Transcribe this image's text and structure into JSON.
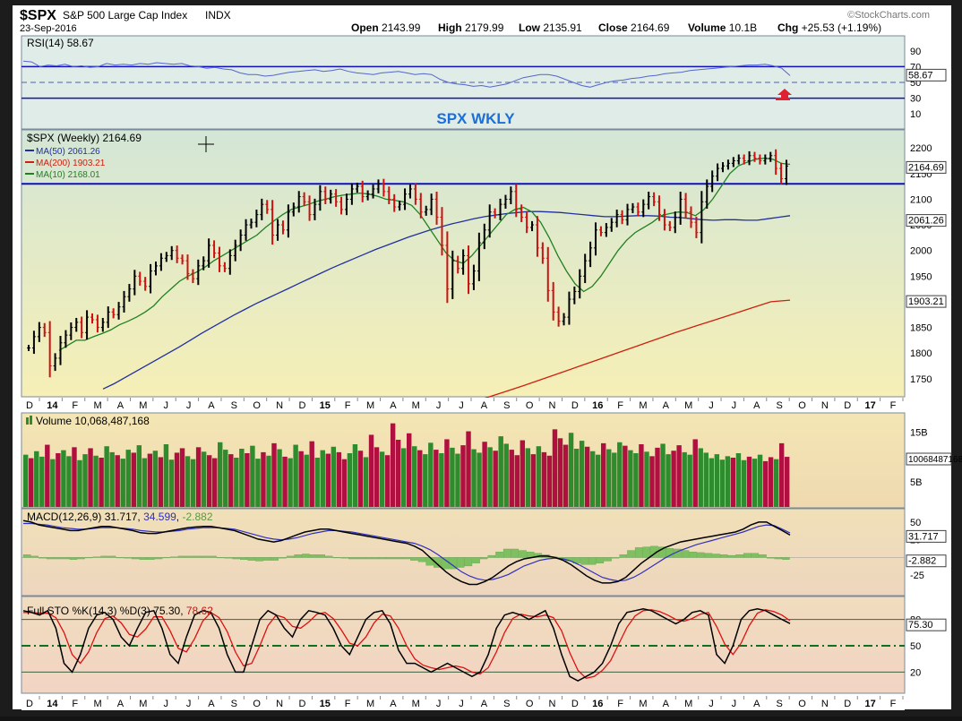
{
  "header": {
    "symbol": "$SPX",
    "name": "S&P 500 Large Cap Index",
    "exchange": "INDX",
    "watermark": "©StockCharts.com",
    "date": "23-Sep-2016",
    "quote": {
      "open_label": "Open",
      "open": "2143.99",
      "high_label": "High",
      "high": "2179.99",
      "low_label": "Low",
      "low": "2135.91",
      "close_label": "Close",
      "close": "2164.69",
      "volume_label": "Volume",
      "volume": "10.1B",
      "chg_label": "Chg",
      "chg": "+25.53 (+1.19%)"
    }
  },
  "colors": {
    "background": "#ffffff",
    "rsi_panel": "#e0ece6",
    "price_panel_top": "#d6e8d6",
    "price_panel_bottom": "#f5eeb8",
    "volume_panel": "#f2e2b6",
    "macd_panel": "#f0dcbc",
    "sto_panel": "#f2d8c0",
    "up_candle": "#000000",
    "down_candle": "#cc1111",
    "ma50": "#2030a0",
    "ma200": "#cc2010",
    "ma10": "#208020",
    "resistance": "#1010c0",
    "annotation": "#1a6fd8",
    "volume_up": "#2e8b2e",
    "volume_down": "#b01040"
  },
  "chart_data": [
    {
      "type": "line",
      "panel": "rsi",
      "legend": "RSI(14)",
      "last_value": "58.67",
      "ylim": [
        0,
        100
      ],
      "yticks": [
        "90",
        "70",
        "50",
        "30",
        "10"
      ],
      "levels": [
        70,
        30
      ],
      "badge": "58.67",
      "values": [
        77,
        76,
        70,
        72,
        71,
        73,
        70,
        71,
        69,
        70,
        74,
        72,
        73,
        72,
        74,
        73,
        75,
        74,
        73,
        74,
        71,
        70,
        68,
        69,
        67,
        66,
        62,
        60,
        60,
        58,
        59,
        61,
        63,
        64,
        65,
        66,
        64,
        65,
        67,
        64,
        62,
        61,
        60,
        62,
        63,
        64,
        62,
        60,
        61,
        60,
        54,
        50,
        48,
        47,
        45,
        46,
        44,
        46,
        48,
        52,
        56,
        58,
        60,
        60,
        58,
        54,
        50,
        46,
        44,
        47,
        50,
        52,
        53,
        55,
        56,
        58,
        59,
        61,
        62,
        63,
        65,
        66,
        67,
        68,
        69,
        70,
        71,
        72,
        72,
        73,
        71,
        68,
        58.67
      ]
    },
    {
      "type": "candlestick",
      "panel": "price",
      "legend": "$SPX (Weekly)",
      "last_value": "2164.69",
      "annotation": "SPX WKLY",
      "ylim": [
        1720,
        2230
      ],
      "yticks": [
        "2200",
        "2150",
        "2100",
        "2050",
        "2000",
        "1950",
        "1900",
        "1850",
        "1800",
        "1750"
      ],
      "resistance": 2130,
      "series": [
        {
          "name": "MA(50)",
          "last": "2061.26"
        },
        {
          "name": "MA(200)",
          "last": "1903.21"
        },
        {
          "name": "MA(10)",
          "last": "2168.01"
        }
      ],
      "badges": [
        "2164.69",
        "2061.26",
        "1903.21"
      ],
      "closes": [
        1810,
        1832,
        1850,
        1840,
        1775,
        1790,
        1820,
        1835,
        1850,
        1860,
        1840,
        1870,
        1865,
        1850,
        1860,
        1880,
        1875,
        1890,
        1910,
        1925,
        1950,
        1940,
        1930,
        1960,
        1970,
        1985,
        1990,
        2000,
        1985,
        1980,
        1955,
        1945,
        1970,
        1980,
        2010,
        1995,
        1970,
        1965,
        1990,
        2010,
        2030,
        2050,
        2055,
        2070,
        2090,
        2080,
        2030,
        2050,
        2040,
        2075,
        2085,
        2105,
        2095,
        2070,
        2090,
        2115,
        2100,
        2110,
        2095,
        2080,
        2100,
        2120,
        2125,
        2105,
        2110,
        2120,
        2130,
        2115,
        2100,
        2085,
        2090,
        2110,
        2120,
        2100,
        2075,
        2080,
        2100,
        2065,
        2010,
        1925,
        1980,
        1965,
        1990,
        1935,
        1960,
        2015,
        2040,
        2075,
        2070,
        2090,
        2100,
        2115,
        2080,
        2065,
        2045,
        2050,
        2005,
        1985,
        1922,
        1880,
        1862,
        1870,
        1905,
        1920,
        1950,
        1980,
        2005,
        2040,
        2035,
        2045,
        2055,
        2070,
        2060,
        2080,
        2085,
        2075,
        2090,
        2105,
        2095,
        2070,
        2050,
        2045,
        2065,
        2100,
        2075,
        2055,
        2035,
        2095,
        2125,
        2145,
        2160,
        2165,
        2170,
        2175,
        2180,
        2175,
        2185,
        2180,
        2175,
        2180,
        2185,
        2160,
        2140,
        2164.69
      ],
      "ma50_values": [
        1730,
        1740,
        1752,
        1764,
        1776,
        1788,
        1800,
        1812,
        1825,
        1838,
        1850,
        1862,
        1874,
        1885,
        1896,
        1906,
        1916,
        1926,
        1936,
        1946,
        1956,
        1966,
        1975,
        1984,
        1993,
        2002,
        2010,
        2018,
        2026,
        2033,
        2040,
        2046,
        2052,
        2057,
        2062,
        2066,
        2069,
        2072,
        2074,
        2076,
        2076,
        2075,
        2074,
        2072,
        2070,
        2068,
        2066,
        2066,
        2067,
        2068,
        2068,
        2067,
        2065,
        2064,
        2062,
        2060,
        2059,
        2060,
        2060,
        2059,
        2059,
        2062,
        2065,
        2068
      ],
      "ma200_values": [
        1700,
        1712,
        1724,
        1736,
        1749,
        1762,
        1775,
        1788,
        1801,
        1814,
        1827,
        1840,
        1852,
        1864,
        1876,
        1888,
        1900,
        1903.21
      ],
      "ma10_values": [
        1805,
        1815,
        1825,
        1825,
        1832,
        1838,
        1845,
        1855,
        1862,
        1870,
        1880,
        1892,
        1910,
        1925,
        1940,
        1950,
        1958,
        1968,
        1980,
        1990,
        2000,
        2010,
        2020,
        2030,
        2045,
        2058,
        2070,
        2080,
        2085,
        2090,
        2096,
        2100,
        2105,
        2108,
        2110,
        2112,
        2110,
        2106,
        2100,
        2098,
        2095,
        2088,
        2070,
        2045,
        2020,
        1995,
        1980,
        1975,
        1990,
        2010,
        2030,
        2050,
        2070,
        2080,
        2084,
        2075,
        2055,
        2025,
        1990,
        1960,
        1935,
        1920,
        1930,
        1950,
        1975,
        2000,
        2020,
        2035,
        2045,
        2055,
        2068,
        2072,
        2075,
        2074,
        2068,
        2080,
        2100,
        2125,
        2150,
        2165,
        2172,
        2178,
        2180,
        2178,
        2170,
        2168.01
      ]
    },
    {
      "type": "bar",
      "panel": "volume",
      "legend": "Volume 10,068,487,168",
      "yticks": [
        "15B",
        "10B",
        "5B"
      ],
      "badge": "10068487168",
      "ylim": [
        0,
        18
      ],
      "values": [
        10.5,
        9.8,
        11.2,
        10.1,
        12.5,
        9.6,
        10.8,
        11.4,
        10.2,
        12.0,
        9.4,
        10.6,
        11.8,
        10.3,
        9.9,
        12.2,
        11.0,
        10.4,
        9.7,
        11.5,
        10.9,
        12.4,
        9.8,
        10.7,
        11.3,
        10.0,
        12.6,
        9.5,
        10.9,
        11.8,
        10.2,
        9.6,
        12.0,
        11.1,
        10.4,
        9.8,
        13.0,
        11.5,
        10.6,
        9.9,
        11.7,
        10.8,
        12.3,
        9.7,
        11.0,
        10.3,
        12.8,
        11.6,
        10.1,
        9.8,
        12.5,
        11.2,
        10.5,
        13.2,
        9.9,
        11.4,
        10.7,
        12.1,
        11.0,
        9.6,
        10.8,
        12.6,
        11.3,
        10.0,
        14.5,
        12.0,
        11.1,
        10.4,
        16.8,
        13.5,
        11.8,
        14.8,
        12.2,
        11.4,
        10.6,
        12.9,
        11.5,
        10.8,
        13.6,
        11.9,
        10.7,
        12.4,
        15.2,
        11.6,
        10.9,
        13.1,
        12.0,
        11.3,
        14.2,
        12.7,
        11.5,
        10.4,
        13.4,
        11.8,
        10.6,
        12.2,
        11.0,
        10.3,
        15.6,
        13.8,
        12.5,
        14.9,
        11.7,
        13.3,
        12.1,
        11.2,
        10.5,
        12.8,
        11.6,
        10.9,
        13.0,
        12.3,
        11.4,
        10.8,
        12.6,
        11.1,
        10.2,
        11.9,
        12.7,
        10.6,
        11.3,
        12.4,
        11.0,
        10.5,
        13.6,
        11.8,
        10.9,
        9.8,
        10.6,
        9.5,
        10.2,
        9.9,
        10.8,
        9.4,
        10.1,
        9.7,
        10.5,
        9.2,
        10.0,
        9.6,
        12.8,
        10.07
      ],
      "directions": [
        1,
        0,
        1,
        1,
        0,
        1,
        0,
        1,
        1,
        0,
        1,
        1,
        0,
        1,
        0,
        1,
        1,
        0,
        1,
        1,
        0,
        1,
        1,
        0,
        1,
        0,
        1,
        1,
        0,
        0,
        1,
        1,
        0,
        1,
        0,
        0,
        1,
        1,
        0,
        1,
        1,
        0,
        1,
        1,
        0,
        1,
        0,
        1,
        0,
        1,
        1,
        0,
        1,
        0,
        1,
        1,
        0,
        1,
        0,
        0,
        1,
        1,
        0,
        1,
        0,
        0,
        1,
        0,
        0,
        0,
        1,
        0,
        1,
        0,
        1,
        1,
        0,
        1,
        0,
        1,
        1,
        0,
        0,
        1,
        1,
        0,
        1,
        0,
        1,
        1,
        0,
        0,
        0,
        1,
        0,
        1,
        0,
        0,
        0,
        0,
        0,
        1,
        1,
        1,
        0,
        1,
        1,
        0,
        1,
        1,
        1,
        0,
        1,
        1,
        0,
        1,
        0,
        0,
        1,
        1,
        0,
        0,
        1,
        1,
        0,
        1,
        1,
        1,
        1,
        1,
        1,
        0,
        1,
        1,
        0,
        1,
        1,
        0,
        0,
        1
      ],
      "up_color": "#2e8b2e",
      "down_color": "#b01040"
    },
    {
      "type": "line",
      "panel": "macd",
      "legend": "MACD(12,26,9)",
      "macd_value": "31.717",
      "signal_value": "34.599",
      "histogram_value": "-2.882",
      "ylim": [
        -50,
        60
      ],
      "yticks": [
        "50",
        "25",
        "0",
        "-25"
      ],
      "badges": [
        "31.717",
        "-2.882"
      ],
      "macd": [
        52,
        50,
        46,
        44,
        42,
        40,
        38,
        38,
        40,
        42,
        44,
        44,
        42,
        40,
        38,
        35,
        34,
        34,
        36,
        38,
        40,
        42,
        43,
        44,
        44,
        42,
        40,
        38,
        34,
        30,
        26,
        24,
        22,
        24,
        28,
        32,
        36,
        38,
        40,
        40,
        38,
        36,
        34,
        32,
        30,
        28,
        26,
        24,
        22,
        20,
        16,
        10,
        0,
        -10,
        -20,
        -28,
        -34,
        -38,
        -38,
        -34,
        -28,
        -20,
        -12,
        -6,
        -2,
        0,
        2,
        2,
        0,
        -4,
        -10,
        -18,
        -26,
        -32,
        -36,
        -36,
        -34,
        -28,
        -18,
        -8,
        0,
        8,
        14,
        18,
        22,
        24,
        26,
        28,
        30,
        32,
        34,
        36,
        40,
        46,
        50,
        50,
        44,
        38,
        31.717
      ],
      "signal": [
        48,
        48,
        47,
        46,
        44,
        42,
        41,
        40,
        40,
        41,
        42,
        42,
        42,
        41,
        40,
        38,
        37,
        36,
        36,
        37,
        38,
        40,
        41,
        42,
        42,
        42,
        41,
        40,
        37,
        34,
        31,
        28,
        26,
        25,
        26,
        28,
        31,
        34,
        36,
        38,
        38,
        37,
        36,
        34,
        32,
        30,
        28,
        26,
        24,
        22,
        20,
        16,
        11,
        4,
        -4,
        -12,
        -20,
        -26,
        -30,
        -32,
        -31,
        -28,
        -24,
        -18,
        -12,
        -8,
        -4,
        -2,
        -1,
        -2,
        -5,
        -10,
        -16,
        -22,
        -28,
        -31,
        -33,
        -32,
        -28,
        -22,
        -15,
        -8,
        -1,
        5,
        10,
        14,
        18,
        21,
        24,
        27,
        30,
        33,
        36,
        40,
        44,
        46,
        45,
        40,
        34.599
      ]
    },
    {
      "type": "line",
      "panel": "stochastic",
      "legend": "Full STO %K(14,3) %D(3)",
      "k_value": "75.30",
      "d_value": "78.62",
      "ylim": [
        0,
        100
      ],
      "yticks": [
        "80",
        "50",
        "20"
      ],
      "levels": [
        80,
        50,
        20
      ],
      "badge": "75.30",
      "k": [
        90,
        88,
        85,
        90,
        70,
        30,
        20,
        40,
        70,
        85,
        88,
        80,
        60,
        50,
        70,
        88,
        90,
        70,
        40,
        30,
        60,
        85,
        90,
        88,
        70,
        40,
        20,
        20,
        50,
        80,
        90,
        85,
        70,
        60,
        80,
        90,
        88,
        85,
        70,
        50,
        40,
        60,
        80,
        88,
        90,
        75,
        45,
        30,
        30,
        25,
        20,
        25,
        30,
        25,
        20,
        15,
        20,
        40,
        70,
        85,
        88,
        85,
        80,
        85,
        90,
        70,
        40,
        15,
        10,
        15,
        20,
        30,
        50,
        75,
        88,
        90,
        92,
        90,
        85,
        80,
        75,
        80,
        88,
        90,
        85,
        40,
        30,
        50,
        80,
        90,
        92,
        90,
        85,
        80,
        75.3
      ],
      "d": [
        88,
        88,
        87,
        87,
        82,
        65,
        40,
        30,
        43,
        65,
        81,
        84,
        76,
        63,
        60,
        69,
        83,
        83,
        67,
        47,
        43,
        58,
        78,
        88,
        82,
        66,
        43,
        27,
        30,
        50,
        73,
        85,
        82,
        72,
        70,
        77,
        86,
        88,
        81,
        68,
        53,
        50,
        60,
        76,
        86,
        84,
        70,
        50,
        35,
        28,
        25,
        23,
        25,
        27,
        25,
        20,
        18,
        25,
        43,
        65,
        81,
        86,
        84,
        83,
        85,
        82,
        67,
        42,
        22,
        13,
        15,
        22,
        33,
        52,
        71,
        84,
        90,
        91,
        89,
        85,
        80,
        78,
        81,
        86,
        88,
        72,
        52,
        40,
        53,
        73,
        87,
        91,
        89,
        85,
        78.62
      ]
    }
  ],
  "axis": {
    "months": [
      "D",
      "14",
      "F",
      "M",
      "A",
      "M",
      "J",
      "J",
      "A",
      "S",
      "O",
      "N",
      "D",
      "15",
      "F",
      "M",
      "A",
      "M",
      "J",
      "J",
      "A",
      "S",
      "O",
      "N",
      "D",
      "16",
      "F",
      "M",
      "A",
      "M",
      "J",
      "J",
      "A",
      "S",
      "O",
      "N",
      "D",
      "17",
      "F"
    ]
  }
}
